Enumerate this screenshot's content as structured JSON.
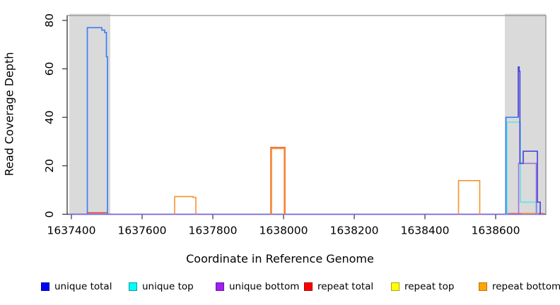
{
  "figure": {
    "x_axis_label": "Coordinate in Reference Genome",
    "y_axis_label": "Read Coverage Depth"
  },
  "chart_data": {
    "type": "line",
    "title": "",
    "xlabel": "Coordinate in Reference Genome",
    "ylabel": "Read Coverage Depth",
    "xlim": [
      1637388,
      1638742
    ],
    "ylim": [
      0,
      82
    ],
    "x_ticks": [
      1637400,
      1637600,
      1637800,
      1638000,
      1638200,
      1638400,
      1638600
    ],
    "y_ticks": [
      0,
      20,
      40,
      60,
      80
    ],
    "grid": false,
    "band_color": "#DADADA",
    "shaded_regions": [
      {
        "name": "left-gray-region",
        "x1": 1637394,
        "x2": 1637510
      },
      {
        "name": "right-gray-region",
        "x1": 1638626,
        "x2": 1638742
      }
    ],
    "series": [
      {
        "name": "zero-baseline-unique-bottom",
        "legend": "unique bottom",
        "color": "#7A5FE6",
        "width": 1.5,
        "points": [
          [
            1637392,
            0
          ],
          [
            1638740,
            0
          ]
        ]
      },
      {
        "name": "repeat-total-left-segment",
        "legend": "repeat total",
        "color": "#E8402F",
        "width": 1.5,
        "points": [
          [
            1637446,
            0.6
          ],
          [
            1637502,
            0.6
          ]
        ]
      },
      {
        "name": "repeat-total-right-segment",
        "legend": "repeat total",
        "color": "#E86A6A",
        "width": 1.4,
        "points": [
          [
            1638629,
            0.35
          ],
          [
            1638738,
            0.35
          ]
        ]
      },
      {
        "name": "repeat-bottom-right-zero-segment",
        "legend": "repeat bottom",
        "color": "#F79330",
        "width": 1.5,
        "points": [
          [
            1638672,
            0.3
          ],
          [
            1638714,
            0.3
          ]
        ]
      },
      {
        "name": "unique-total-left-peak",
        "legend": "unique total",
        "color": "#3D7EF5",
        "width": 1.7,
        "points": [
          [
            1637445,
            0
          ],
          [
            1637445,
            77
          ],
          [
            1637486,
            77
          ],
          [
            1637486,
            76
          ],
          [
            1637494,
            76
          ],
          [
            1637494,
            75
          ],
          [
            1637499,
            75
          ],
          [
            1637499,
            65
          ],
          [
            1637502,
            65
          ],
          [
            1637502,
            0
          ]
        ]
      },
      {
        "name": "unique-top-right-step",
        "legend": "unique top",
        "color": "#58E8E8",
        "width": 1.6,
        "points": [
          [
            1638632,
            0
          ],
          [
            1638632,
            38
          ],
          [
            1638670,
            38
          ],
          [
            1638670,
            5
          ],
          [
            1638717,
            5
          ],
          [
            1638717,
            0
          ]
        ]
      },
      {
        "name": "unique-bottom-right-box",
        "legend": "unique bottom",
        "color": "#A36FE0",
        "width": 1.6,
        "points": [
          [
            1638665,
            0
          ],
          [
            1638665,
            21
          ],
          [
            1638715,
            21
          ],
          [
            1638715,
            0
          ]
        ]
      },
      {
        "name": "unique-total-right-rise",
        "legend": "unique total",
        "color": "#3D7EF5",
        "width": 1.7,
        "points": [
          [
            1638629,
            0
          ],
          [
            1638629,
            40
          ],
          [
            1638664,
            40
          ]
        ]
      },
      {
        "name": "unique-total-right-spike-and-boxes",
        "legend": "unique total",
        "color": "#4B48DA",
        "width": 1.7,
        "points": [
          [
            1638664,
            40
          ],
          [
            1638664,
            60.8
          ],
          [
            1638666.5,
            60.8
          ],
          [
            1638666.5,
            59
          ],
          [
            1638668.5,
            59
          ],
          [
            1638668.5,
            21
          ],
          [
            1638678,
            21
          ],
          [
            1638678,
            26
          ],
          [
            1638718,
            26
          ],
          [
            1638718,
            5
          ],
          [
            1638726,
            5
          ],
          [
            1638726,
            0
          ]
        ]
      },
      {
        "name": "repeat-total-middle-box",
        "legend": "repeat total",
        "color": "#F2622E",
        "width": 1.6,
        "points": [
          [
            1637964,
            0
          ],
          [
            1637964,
            27.6
          ],
          [
            1638004,
            27.6
          ],
          [
            1638004,
            0
          ]
        ]
      },
      {
        "name": "repeat-bottom-box-1",
        "legend": "repeat bottom",
        "color": "#F79330",
        "width": 1.6,
        "points": [
          [
            1637692,
            0
          ],
          [
            1637692,
            7.3
          ],
          [
            1637744,
            7.3
          ],
          [
            1637744,
            7
          ],
          [
            1637752,
            7
          ],
          [
            1637752,
            0
          ]
        ]
      },
      {
        "name": "repeat-bottom-box-2",
        "legend": "repeat bottom",
        "color": "#F79330",
        "width": 1.6,
        "points": [
          [
            1637966,
            0
          ],
          [
            1637966,
            27.1
          ],
          [
            1638002,
            27.1
          ],
          [
            1638002,
            0
          ]
        ]
      },
      {
        "name": "repeat-bottom-box-3",
        "legend": "repeat bottom",
        "color": "#F79330",
        "width": 1.6,
        "points": [
          [
            1638495,
            0
          ],
          [
            1638495,
            13.9
          ],
          [
            1638555,
            13.9
          ],
          [
            1638555,
            0
          ]
        ]
      }
    ],
    "legend": {
      "position": "bottom",
      "entries": [
        {
          "label": "unique total",
          "color": "#0000FF",
          "border": "#0000A8"
        },
        {
          "label": "unique top",
          "color": "#00FFFF",
          "border": "#009999"
        },
        {
          "label": "unique bottom",
          "color": "#A020F0",
          "border": "#6A10A8"
        },
        {
          "label": "repeat total",
          "color": "#FF0000",
          "border": "#A80000"
        },
        {
          "label": "repeat top",
          "color": "#FFFF00",
          "border": "#A8A800"
        },
        {
          "label": "repeat bottom",
          "color": "#FFA500",
          "border": "#B87400"
        }
      ]
    }
  }
}
